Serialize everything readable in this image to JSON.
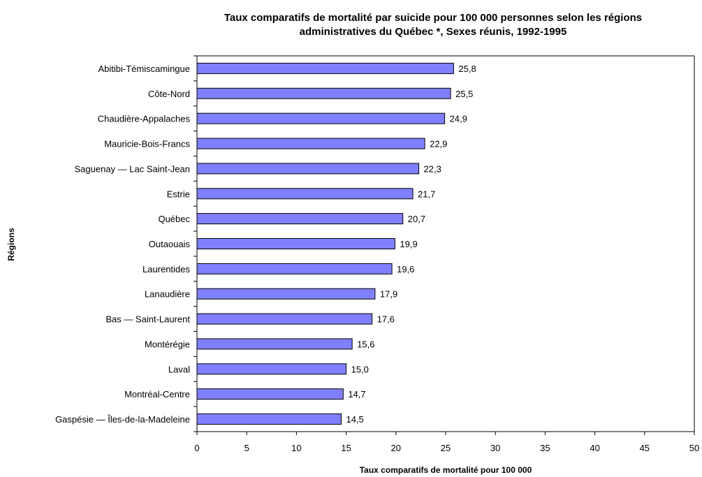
{
  "chart_data": {
    "type": "bar",
    "orientation": "horizontal",
    "title_line1": "Taux comparatifs de mortalité par suicide pour 100 000  personnes selon les régions",
    "title_line2": "administratives du Québec *, Sexes réunis, 1992-1995",
    "xlabel": "Taux comparatifs de mortalité pour 100 000",
    "ylabel": "Régions",
    "xlim": [
      0,
      50
    ],
    "xticks": [
      "0",
      "5",
      "10",
      "15",
      "20",
      "25",
      "30",
      "35",
      "40",
      "45",
      "50"
    ],
    "bar_color": "#8080ff",
    "categories": [
      "Abitibi-Témiscamingue",
      "Côte-Nord",
      "Chaudière-Appalaches",
      "Mauricie-Bois-Francs",
      "Saguenay — Lac Saint-Jean",
      "Estrie",
      "Québec",
      "Outaouais",
      "Laurentides",
      "Lanaudière",
      "Bas — Saint-Laurent",
      "Montérégie",
      "Laval",
      "Montréal-Centre",
      "Gaspésie — Îles-de-la-Madeleine"
    ],
    "values": [
      25.8,
      25.5,
      24.9,
      22.9,
      22.3,
      21.7,
      20.7,
      19.9,
      19.6,
      17.9,
      17.6,
      15.6,
      15.0,
      14.7,
      14.5
    ],
    "value_labels": [
      "25,8",
      "25,5",
      "24,9",
      "22,9",
      "22,3",
      "21,7",
      "20,7",
      "19,9",
      "19,6",
      "17,9",
      "17,6",
      "15,6",
      "15,0",
      "14,7",
      "14,5"
    ],
    "grid": false,
    "legend": "none"
  }
}
